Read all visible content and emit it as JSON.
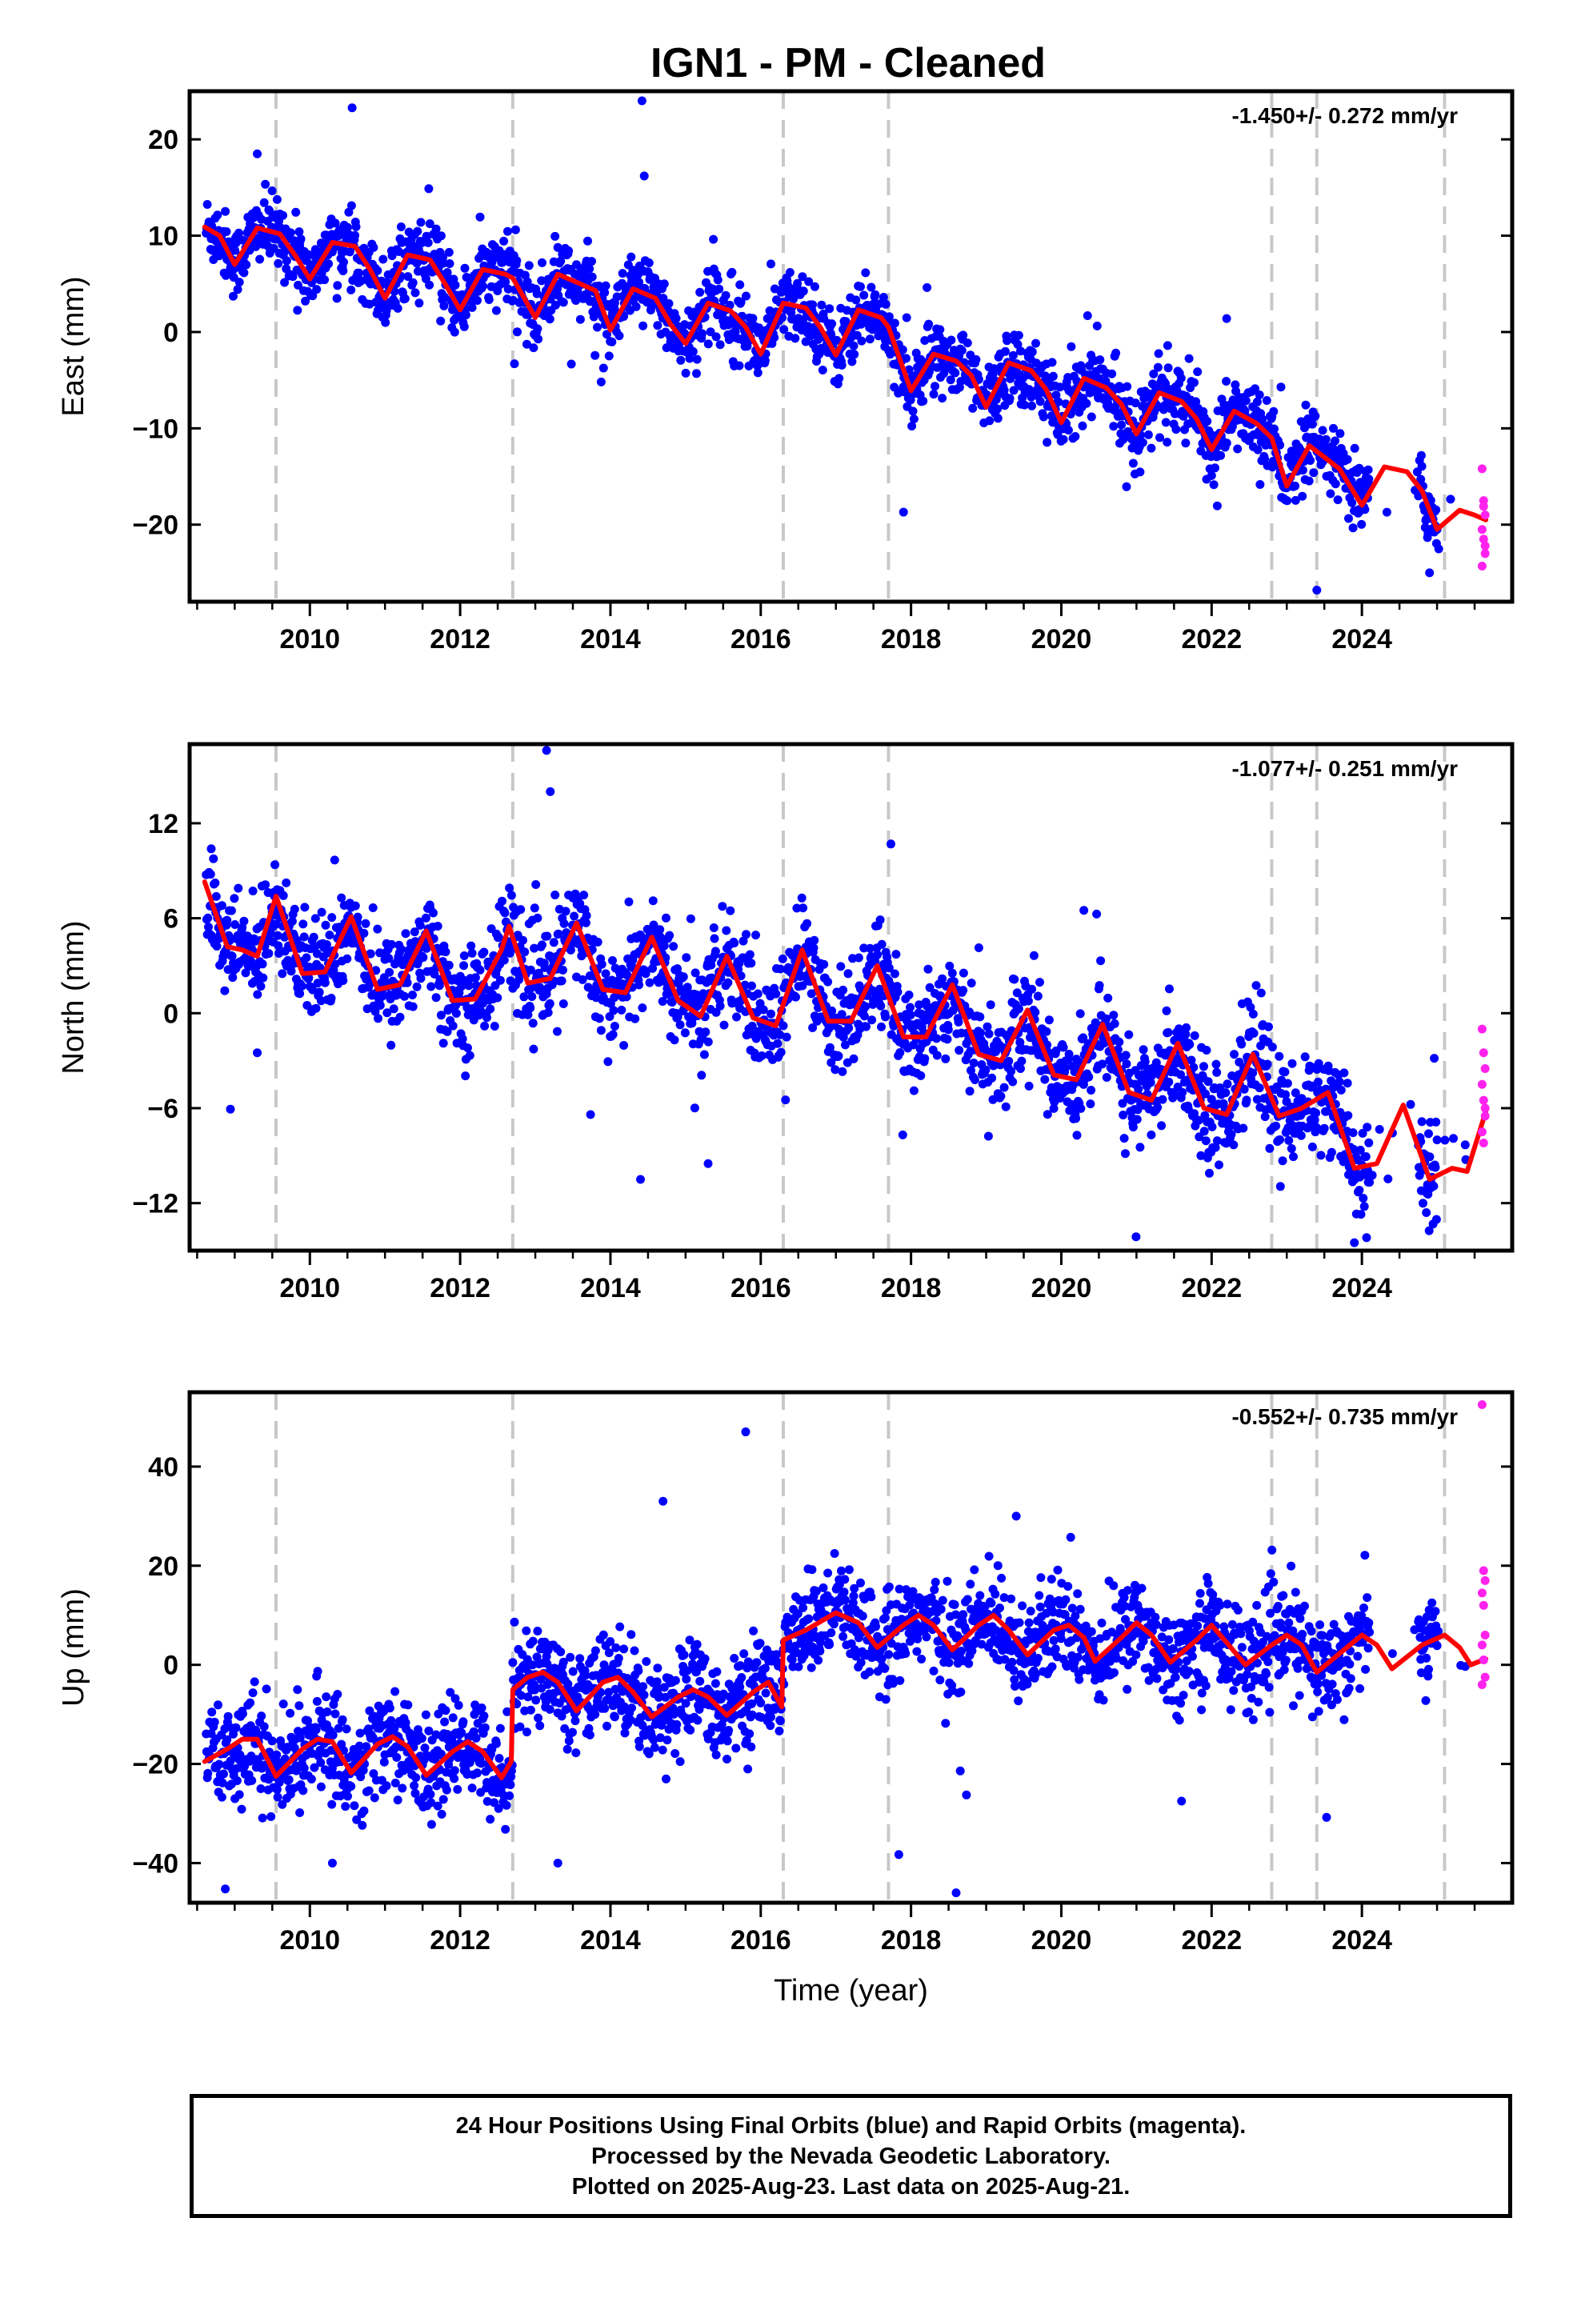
{
  "page": {
    "title": "IGN1  - PM - Cleaned"
  },
  "footer": {
    "line1": "24 Hour Positions Using Final Orbits (blue) and Rapid Orbits (magenta).",
    "line2": "Processed by the Nevada Geodetic Laboratory.",
    "line3": "Plotted on 2025-Aug-23. Last data on 2025-Aug-21."
  },
  "colors": {
    "final_orbit_points": "#0000ff",
    "rapid_orbit_points": "#ff22ee",
    "model_fit": "#ff0000",
    "event_lines": "#c8c8c8"
  },
  "chart_data": [
    {
      "type": "scatter",
      "component": "east",
      "ylabel": "East (mm)",
      "xlabel": "",
      "xlim": [
        2008.4,
        2026.0
      ],
      "ylim": [
        -28,
        25
      ],
      "yticks": [
        20,
        10,
        0,
        -10,
        -20
      ],
      "xticks": [
        2010,
        2012,
        2014,
        2016,
        2018,
        2020,
        2022,
        2024
      ],
      "rate": "-1.450+/- 0.272 mm/yr",
      "trend": {
        "start": [
          2008.6,
          10.5
        ],
        "slope": -1.75,
        "annual_amplitude": 2.2,
        "scatter": 1.8
      },
      "outliers": [
        [
          2014.42,
          24.0
        ],
        [
          2014.45,
          16.2
        ],
        [
          2009.3,
          18.5
        ],
        [
          2023.4,
          -26.8
        ],
        [
          2017.9,
          -18.7
        ],
        [
          2022.2,
          1.4
        ],
        [
          2024.9,
          -25.0
        ]
      ],
      "rapid_points": [
        [
          2025.6,
          -14.2
        ],
        [
          2025.6,
          -17.5
        ],
        [
          2025.6,
          -19.0
        ],
        [
          2025.6,
          -20.5
        ],
        [
          2025.6,
          -21.5
        ],
        [
          2025.6,
          -23.0
        ],
        [
          2025.6,
          -24.3
        ],
        [
          2025.6,
          -18.1
        ],
        [
          2025.6,
          -22.2
        ]
      ],
      "model": [
        [
          2008.6,
          10.9
        ],
        [
          2008.8,
          10.0
        ],
        [
          2009.0,
          7.0
        ],
        [
          2009.3,
          10.8
        ],
        [
          2009.6,
          10.2
        ],
        [
          2009.8,
          8.0
        ],
        [
          2010.0,
          5.5
        ],
        [
          2010.3,
          9.3
        ],
        [
          2010.6,
          8.9
        ],
        [
          2010.8,
          6.5
        ],
        [
          2011.0,
          3.5
        ],
        [
          2011.3,
          8.0
        ],
        [
          2011.6,
          7.5
        ],
        [
          2011.8,
          5.0
        ],
        [
          2012.0,
          2.3
        ],
        [
          2012.3,
          6.5
        ],
        [
          2012.6,
          6.0
        ],
        [
          2012.7,
          5.6
        ],
        [
          2013.0,
          1.5
        ],
        [
          2013.3,
          6.0
        ],
        [
          2013.6,
          5.0
        ],
        [
          2013.8,
          4.3
        ],
        [
          2014.0,
          0.2
        ],
        [
          2014.3,
          4.5
        ],
        [
          2014.6,
          3.5
        ],
        [
          2014.8,
          0.8
        ],
        [
          2015.0,
          -1.2
        ],
        [
          2015.3,
          3.0
        ],
        [
          2015.6,
          2.2
        ],
        [
          2015.8,
          0.5
        ],
        [
          2016.0,
          -2.3
        ],
        [
          2016.3,
          3.0
        ],
        [
          2016.6,
          2.5
        ],
        [
          2016.8,
          0.4
        ],
        [
          2017.0,
          -2.4
        ],
        [
          2017.3,
          2.3
        ],
        [
          2017.6,
          1.5
        ],
        [
          2017.7,
          0.5
        ],
        [
          2018.0,
          -6.1
        ],
        [
          2018.3,
          -2.3
        ],
        [
          2018.6,
          -3.0
        ],
        [
          2018.8,
          -4.5
        ],
        [
          2019.0,
          -7.8
        ],
        [
          2019.3,
          -3.2
        ],
        [
          2019.6,
          -4.0
        ],
        [
          2019.8,
          -6.0
        ],
        [
          2020.0,
          -9.4
        ],
        [
          2020.3,
          -4.8
        ],
        [
          2020.6,
          -5.8
        ],
        [
          2020.8,
          -7.5
        ],
        [
          2021.0,
          -10.6
        ],
        [
          2021.3,
          -6.3
        ],
        [
          2021.6,
          -7.2
        ],
        [
          2021.8,
          -9.0
        ],
        [
          2022.0,
          -12.2
        ],
        [
          2022.3,
          -8.2
        ],
        [
          2022.6,
          -9.5
        ],
        [
          2022.8,
          -11.0
        ],
        [
          2023.0,
          -16.0
        ],
        [
          2023.3,
          -11.8
        ],
        [
          2023.5,
          -13.0
        ],
        [
          2023.7,
          -14.2
        ],
        [
          2024.0,
          -18.0
        ],
        [
          2024.3,
          -14.0
        ],
        [
          2024.6,
          -14.5
        ],
        [
          2024.8,
          -16.5
        ],
        [
          2025.0,
          -20.5
        ],
        [
          2025.3,
          -18.5
        ],
        [
          2025.5,
          -19.0
        ],
        [
          2025.65,
          -19.5
        ]
      ]
    },
    {
      "type": "scatter",
      "component": "north",
      "ylabel": "North (mm)",
      "xlabel": "",
      "xlim": [
        2008.4,
        2026.0
      ],
      "ylim": [
        -15,
        17
      ],
      "yticks": [
        12,
        6,
        0,
        -6,
        -12
      ],
      "xticks": [
        2010,
        2012,
        2014,
        2016,
        2018,
        2020,
        2022,
        2024
      ],
      "rate": "-1.077+/- 0.251 mm/yr",
      "trend": {
        "start": [
          2008.6,
          5.0
        ],
        "slope": -0.85,
        "annual_amplitude": 2.0,
        "scatter": 1.6
      },
      "outliers": [
        [
          2013.15,
          16.6
        ],
        [
          2013.2,
          14.0
        ],
        [
          2009.3,
          -2.5
        ],
        [
          2014.4,
          -10.5
        ],
        [
          2023.9,
          -14.5
        ],
        [
          2020.3,
          6.5
        ],
        [
          2015.3,
          -9.5
        ]
      ],
      "rapid_points": [
        [
          2025.6,
          -1.0
        ],
        [
          2025.6,
          -2.5
        ],
        [
          2025.6,
          -3.5
        ],
        [
          2025.6,
          -4.5
        ],
        [
          2025.6,
          -5.5
        ],
        [
          2025.6,
          -6.5
        ],
        [
          2025.6,
          -7.5
        ],
        [
          2025.6,
          -8.2
        ],
        [
          2025.6,
          -6.0
        ]
      ],
      "model": [
        [
          2008.6,
          8.3
        ],
        [
          2008.9,
          4.2
        ],
        [
          2009.1,
          4.0
        ],
        [
          2009.3,
          3.6
        ],
        [
          2009.55,
          7.4
        ],
        [
          2009.9,
          2.5
        ],
        [
          2010.2,
          2.6
        ],
        [
          2010.55,
          6.1
        ],
        [
          2010.9,
          1.5
        ],
        [
          2011.2,
          1.8
        ],
        [
          2011.55,
          5.2
        ],
        [
          2011.9,
          0.8
        ],
        [
          2012.2,
          0.9
        ],
        [
          2012.55,
          4.0
        ],
        [
          2012.65,
          5.5
        ],
        [
          2012.9,
          1.9
        ],
        [
          2013.2,
          2.2
        ],
        [
          2013.55,
          5.7
        ],
        [
          2013.9,
          1.5
        ],
        [
          2014.2,
          1.3
        ],
        [
          2014.55,
          4.8
        ],
        [
          2014.9,
          0.8
        ],
        [
          2015.2,
          -0.2
        ],
        [
          2015.55,
          3.6
        ],
        [
          2015.9,
          -0.3
        ],
        [
          2016.2,
          -0.8
        ],
        [
          2016.55,
          4.0
        ],
        [
          2016.9,
          -0.5
        ],
        [
          2017.2,
          -0.5
        ],
        [
          2017.55,
          3.0
        ],
        [
          2017.9,
          -1.5
        ],
        [
          2018.2,
          -1.5
        ],
        [
          2018.55,
          1.8
        ],
        [
          2018.9,
          -2.6
        ],
        [
          2019.2,
          -3.0
        ],
        [
          2019.55,
          0.2
        ],
        [
          2019.9,
          -3.9
        ],
        [
          2020.2,
          -4.2
        ],
        [
          2020.55,
          -0.7
        ],
        [
          2020.9,
          -5.0
        ],
        [
          2021.2,
          -5.5
        ],
        [
          2021.55,
          -1.9
        ],
        [
          2021.9,
          -6.0
        ],
        [
          2022.2,
          -6.4
        ],
        [
          2022.55,
          -2.6
        ],
        [
          2022.9,
          -6.5
        ],
        [
          2023.2,
          -6.0
        ],
        [
          2023.55,
          -5.0
        ],
        [
          2023.9,
          -9.8
        ],
        [
          2024.2,
          -9.5
        ],
        [
          2024.55,
          -5.8
        ],
        [
          2024.9,
          -10.5
        ],
        [
          2025.2,
          -9.8
        ],
        [
          2025.4,
          -10.0
        ],
        [
          2025.65,
          -6.2
        ]
      ]
    },
    {
      "type": "scatter",
      "component": "up",
      "ylabel": "Up (mm)",
      "xlabel": "Time (year)",
      "xlim": [
        2008.4,
        2026.0
      ],
      "ylim": [
        -48,
        55
      ],
      "yticks": [
        40,
        20,
        0,
        -20,
        -40
      ],
      "xticks": [
        2010,
        2012,
        2014,
        2016,
        2018,
        2020,
        2022,
        2024
      ],
      "rate": "-0.552+/- 0.735 mm/yr",
      "trend": {
        "start": [
          2008.6,
          -18.0
        ],
        "slope": 0.4,
        "annual_amplitude": 4.0,
        "scatter": 5.0
      },
      "outliers": [
        [
          2015.8,
          47.0
        ],
        [
          2018.6,
          -46.0
        ],
        [
          2021.6,
          -27.5
        ],
        [
          2013.3,
          -40.0
        ],
        [
          2010.3,
          -40.0
        ],
        [
          2014.7,
          33.0
        ],
        [
          2019.4,
          30.0
        ]
      ],
      "rapid_points": [
        [
          2025.6,
          52.5
        ],
        [
          2025.6,
          19.0
        ],
        [
          2025.6,
          17.0
        ],
        [
          2025.6,
          14.5
        ],
        [
          2025.6,
          12.0
        ],
        [
          2025.6,
          6.0
        ],
        [
          2025.6,
          4.0
        ],
        [
          2025.6,
          1.0
        ],
        [
          2025.6,
          -2.5
        ],
        [
          2025.6,
          -4.0
        ]
      ],
      "model": [
        [
          2008.6,
          -19.5
        ],
        [
          2008.9,
          -17.0
        ],
        [
          2009.1,
          -15.0
        ],
        [
          2009.3,
          -15.0
        ],
        [
          2009.55,
          -22.5
        ],
        [
          2009.9,
          -17.0
        ],
        [
          2010.1,
          -15.0
        ],
        [
          2010.3,
          -15.5
        ],
        [
          2010.55,
          -21.8
        ],
        [
          2010.9,
          -16.0
        ],
        [
          2011.1,
          -14.5
        ],
        [
          2011.3,
          -16.5
        ],
        [
          2011.55,
          -22.3
        ],
        [
          2011.9,
          -17.5
        ],
        [
          2012.1,
          -15.5
        ],
        [
          2012.3,
          -17.5
        ],
        [
          2012.55,
          -22.8
        ],
        [
          2012.68,
          -19.5
        ],
        [
          2012.7,
          -5.0
        ],
        [
          2012.9,
          -2.5
        ],
        [
          2013.1,
          -1.5
        ],
        [
          2013.3,
          -3.5
        ],
        [
          2013.55,
          -9.3
        ],
        [
          2013.9,
          -3.5
        ],
        [
          2014.1,
          -2.5
        ],
        [
          2014.3,
          -5.5
        ],
        [
          2014.55,
          -10.5
        ],
        [
          2014.9,
          -6.5
        ],
        [
          2015.1,
          -5.0
        ],
        [
          2015.3,
          -6.5
        ],
        [
          2015.55,
          -10.2
        ],
        [
          2015.9,
          -5.5
        ],
        [
          2016.1,
          -3.5
        ],
        [
          2016.28,
          -8.5
        ],
        [
          2016.3,
          5.0
        ],
        [
          2016.6,
          7.0
        ],
        [
          2017.0,
          10.5
        ],
        [
          2017.3,
          8.5
        ],
        [
          2017.55,
          3.5
        ],
        [
          2017.9,
          8.0
        ],
        [
          2018.1,
          10.0
        ],
        [
          2018.3,
          8.0
        ],
        [
          2018.55,
          3.0
        ],
        [
          2018.9,
          8.0
        ],
        [
          2019.1,
          10.0
        ],
        [
          2019.3,
          7.0
        ],
        [
          2019.55,
          2.0
        ],
        [
          2019.9,
          7.0
        ],
        [
          2020.1,
          8.0
        ],
        [
          2020.3,
          5.5
        ],
        [
          2020.45,
          0.7
        ],
        [
          2020.8,
          5.5
        ],
        [
          2021.0,
          8.5
        ],
        [
          2021.2,
          6.0
        ],
        [
          2021.45,
          0.5
        ],
        [
          2021.8,
          5.0
        ],
        [
          2022.0,
          8.0
        ],
        [
          2022.2,
          4.5
        ],
        [
          2022.45,
          0.0
        ],
        [
          2022.8,
          4.0
        ],
        [
          2023.0,
          6.0
        ],
        [
          2023.2,
          4.0
        ],
        [
          2023.4,
          -1.5
        ],
        [
          2023.8,
          3.5
        ],
        [
          2024.0,
          6.0
        ],
        [
          2024.2,
          4.0
        ],
        [
          2024.4,
          -0.8
        ],
        [
          2024.8,
          4.0
        ],
        [
          2025.1,
          6.0
        ],
        [
          2025.3,
          3.5
        ],
        [
          2025.45,
          0.0
        ],
        [
          2025.65,
          1.2
        ]
      ]
    }
  ],
  "event_lines": [
    2009.55,
    2012.7,
    2016.3,
    2017.7,
    2022.8,
    2023.4,
    2025.1
  ]
}
